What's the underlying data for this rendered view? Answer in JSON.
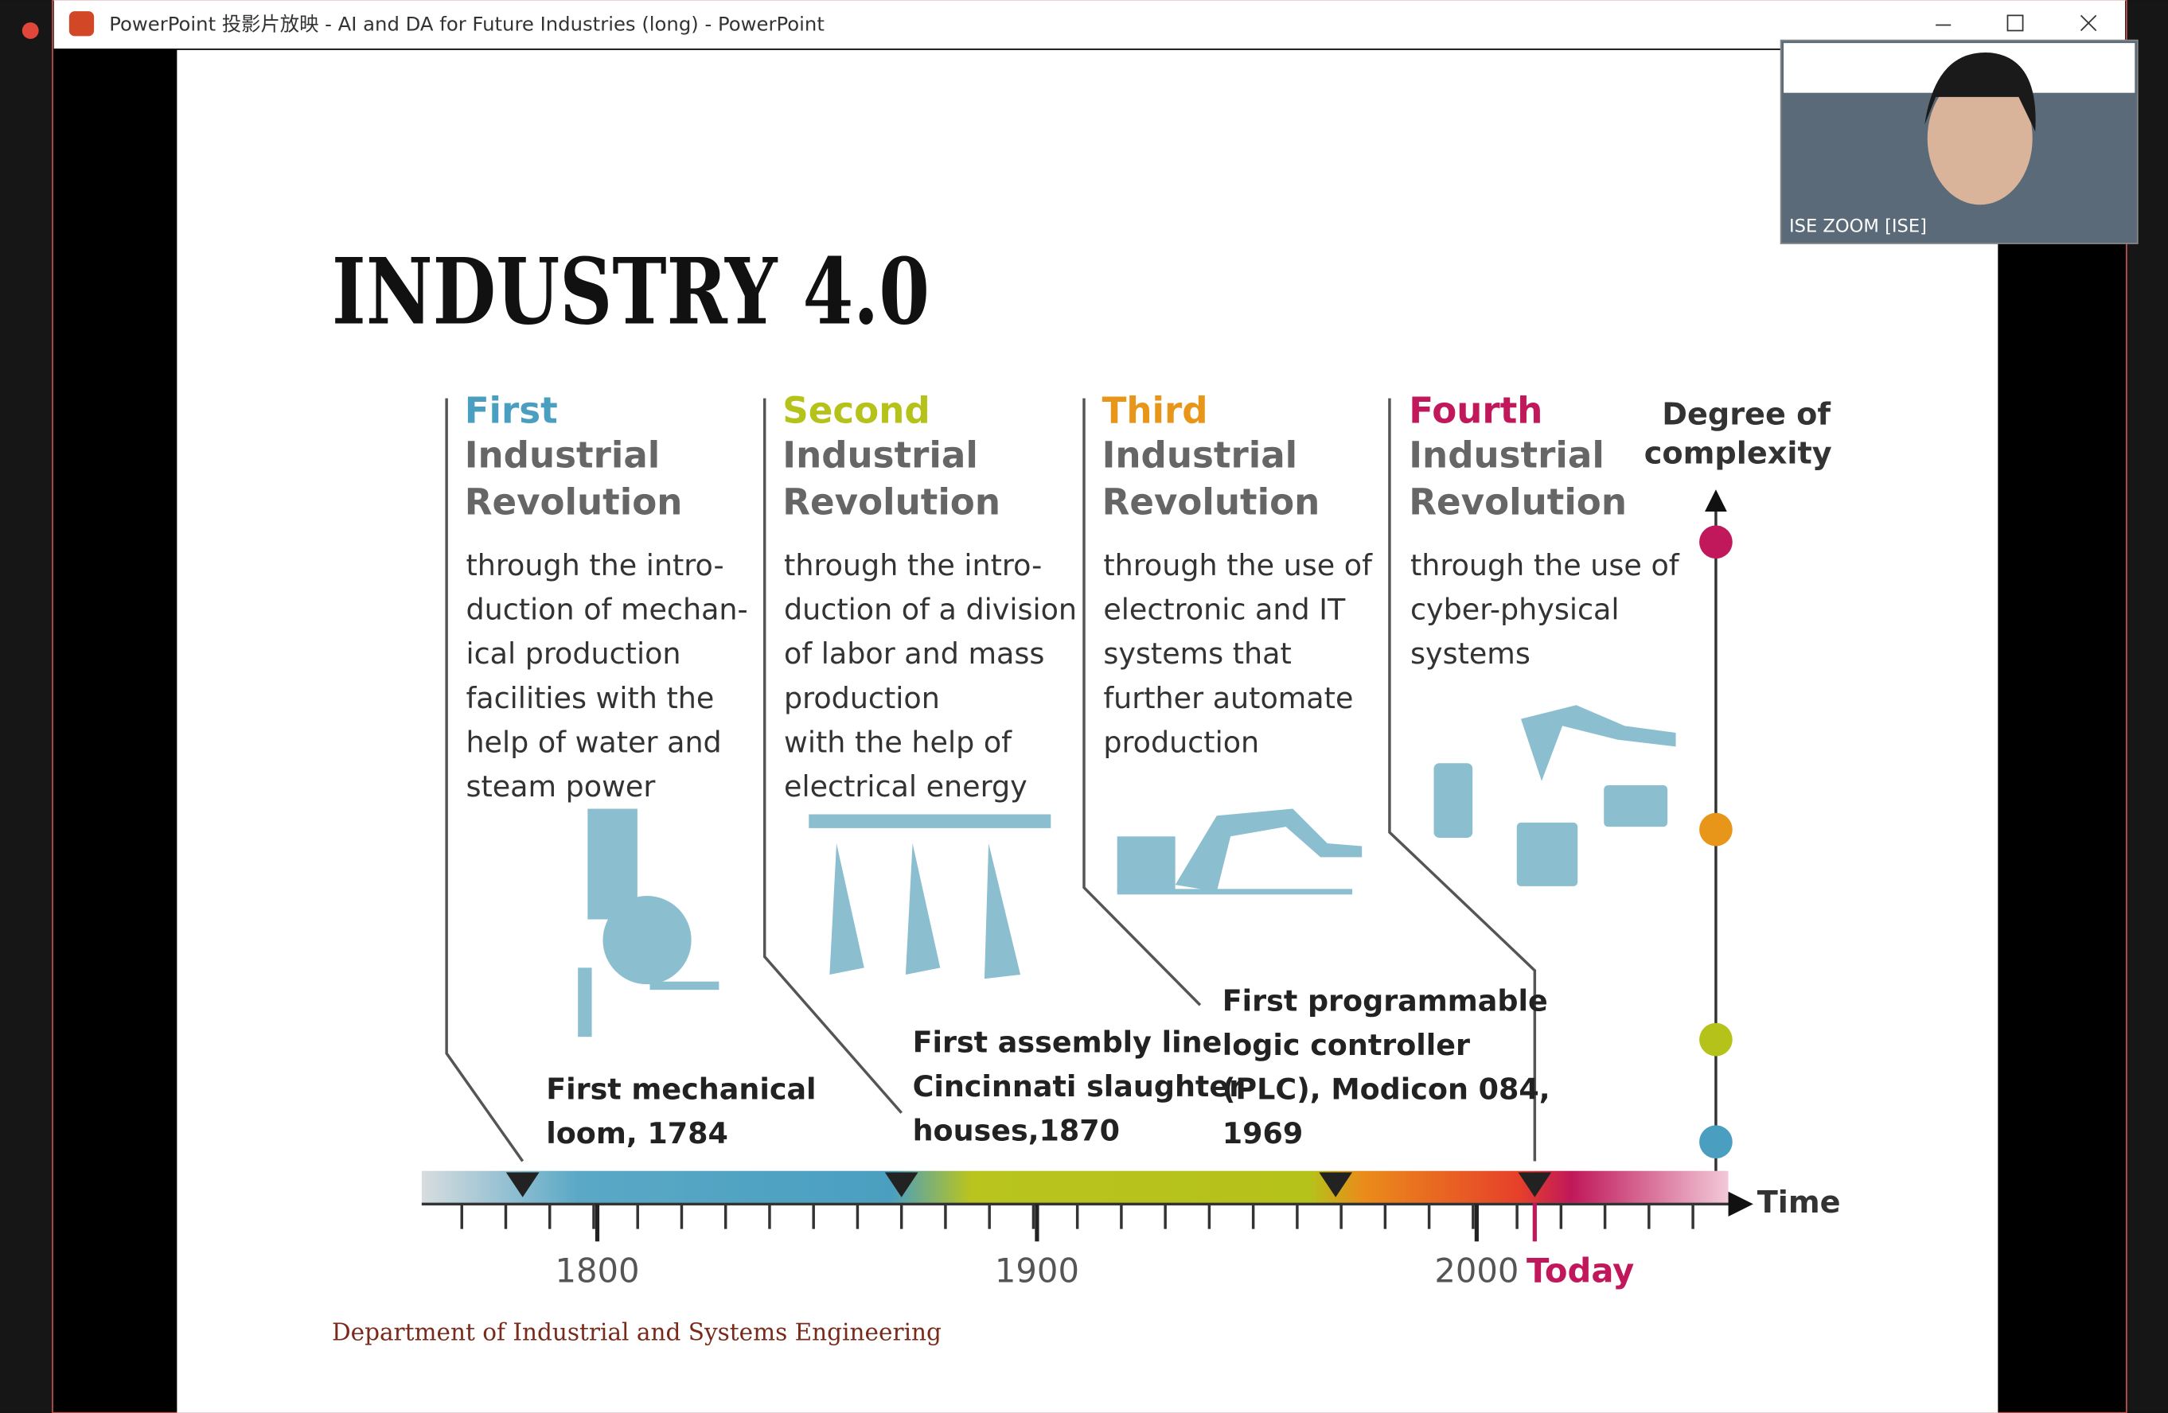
{
  "window": {
    "title": "PowerPoint 投影片放映  -  AI and DA for Future Industries (long) - PowerPoint"
  },
  "slide": {
    "title": "INDUSTRY 4.0",
    "revolutions": [
      {
        "ordinal": "First",
        "name": [
          "Industrial",
          "Revolution"
        ],
        "description": [
          "through the intro-",
          "duction of mechan-",
          "ical production",
          "facilities with the",
          "help of water and",
          "steam power"
        ]
      },
      {
        "ordinal": "Second",
        "name": [
          "Industrial",
          "Revolution"
        ],
        "description": [
          "through the intro-",
          "duction of a division",
          "of labor and mass",
          "production",
          "with the help of",
          "electrical energy"
        ]
      },
      {
        "ordinal": "Third",
        "name": [
          "Industrial",
          "Revolution"
        ],
        "description": [
          "through the use of",
          "electronic and IT",
          "systems that",
          "further automate",
          "production"
        ]
      },
      {
        "ordinal": "Fourth",
        "name": [
          "Industrial",
          "Revolution"
        ],
        "description": [
          "through the use of",
          "cyber-physical",
          "systems"
        ]
      }
    ],
    "events": [
      {
        "lines": [
          "First mechanical",
          "loom, 1784"
        ]
      },
      {
        "lines": [
          "First assembly line",
          "Cincinnati slaughter",
          "houses,1870"
        ]
      },
      {
        "lines": [
          "First programmable",
          "logic controller",
          "(PLC), Modicon 084,",
          "1969"
        ]
      }
    ],
    "complexity": [
      "Degree of",
      "complexity"
    ],
    "axis": {
      "ticks": [
        1800,
        1900,
        2000
      ],
      "today": "Today",
      "label": "Time"
    },
    "footer": "Department of Industrial and Systems Engineering"
  },
  "zoom": {
    "participant": "ISE ZOOM [ISE]"
  }
}
